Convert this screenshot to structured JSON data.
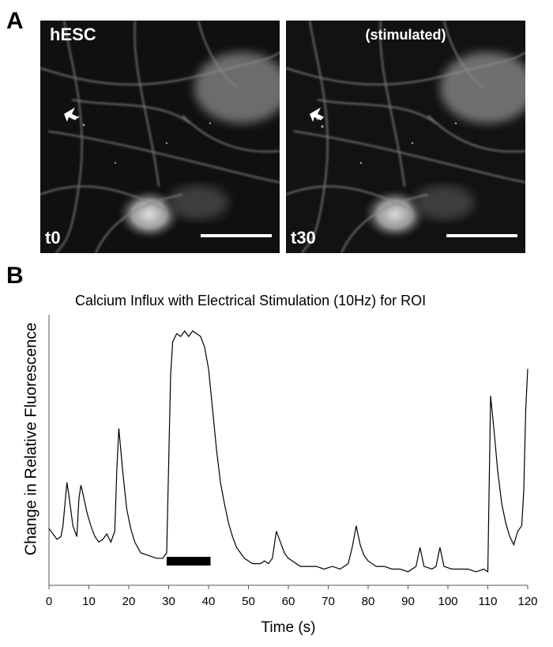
{
  "figure": {
    "panel_a": {
      "letter": "A",
      "images": [
        {
          "top_label": "hESC",
          "time_label": "t0"
        },
        {
          "top_label": "(stimulated)",
          "time_label": "t30"
        }
      ]
    },
    "panel_b": {
      "letter": "B"
    }
  },
  "chart_data": {
    "type": "line",
    "title": "Calcium Influx with Electrical Stimulation (10Hz) for ROI",
    "xlabel": "Time (s)",
    "ylabel": "Change in Relative Fluorescence",
    "xlim": [
      0,
      120
    ],
    "ylim": [
      0,
      1
    ],
    "x_ticks": [
      0,
      10,
      20,
      30,
      40,
      50,
      60,
      70,
      80,
      90,
      100,
      110,
      120
    ],
    "stimulation_window": [
      29.5,
      40.5
    ],
    "series": [
      {
        "name": "ROI",
        "x": [
          0,
          1,
          2,
          3,
          3.5,
          4.5,
          5,
          6,
          7,
          7.5,
          8,
          8.5,
          9.5,
          10.5,
          11.5,
          12.5,
          13.5,
          14.5,
          15.5,
          16.5,
          17,
          17.5,
          18.5,
          19.5,
          20.5,
          21.5,
          23,
          25,
          27,
          28.5,
          29.5,
          30.5,
          31,
          32,
          33,
          34,
          35,
          36,
          37,
          38,
          39,
          40,
          41,
          42,
          43,
          44,
          45,
          46,
          47,
          48,
          49,
          50,
          51,
          52,
          53,
          54,
          55,
          56,
          57,
          58,
          59,
          60,
          61,
          62,
          63,
          65,
          67,
          69,
          71,
          73,
          75,
          76,
          77,
          78,
          79,
          80,
          82,
          84,
          86,
          88,
          90,
          92,
          93,
          94,
          96,
          97,
          98,
          99,
          101,
          103,
          105,
          107,
          109,
          110,
          110.7,
          111.5,
          112.5,
          113.5,
          114.5,
          115.5,
          116.5,
          117.5,
          118.5,
          119,
          119.5,
          120
        ],
        "values": [
          0.21,
          0.19,
          0.17,
          0.18,
          0.22,
          0.38,
          0.33,
          0.22,
          0.18,
          0.32,
          0.37,
          0.34,
          0.27,
          0.22,
          0.18,
          0.16,
          0.17,
          0.19,
          0.16,
          0.2,
          0.42,
          0.58,
          0.42,
          0.28,
          0.21,
          0.16,
          0.12,
          0.11,
          0.1,
          0.1,
          0.12,
          0.78,
          0.9,
          0.93,
          0.92,
          0.94,
          0.92,
          0.94,
          0.93,
          0.92,
          0.88,
          0.8,
          0.65,
          0.5,
          0.38,
          0.3,
          0.23,
          0.18,
          0.14,
          0.12,
          0.1,
          0.09,
          0.08,
          0.08,
          0.08,
          0.09,
          0.08,
          0.1,
          0.2,
          0.16,
          0.12,
          0.1,
          0.09,
          0.08,
          0.07,
          0.07,
          0.07,
          0.06,
          0.07,
          0.06,
          0.08,
          0.14,
          0.22,
          0.15,
          0.11,
          0.09,
          0.07,
          0.07,
          0.06,
          0.06,
          0.05,
          0.07,
          0.14,
          0.07,
          0.06,
          0.07,
          0.14,
          0.07,
          0.06,
          0.06,
          0.06,
          0.05,
          0.06,
          0.05,
          0.7,
          0.58,
          0.42,
          0.3,
          0.23,
          0.18,
          0.15,
          0.2,
          0.22,
          0.35,
          0.65,
          0.8
        ]
      }
    ]
  }
}
